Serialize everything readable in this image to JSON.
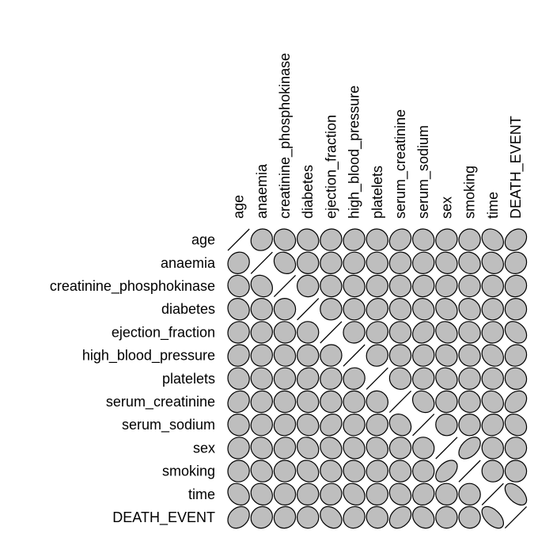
{
  "chart_data": {
    "type": "heatmap",
    "method": "ellipse",
    "variables": [
      "age",
      "anaemia",
      "creatinine_phosphokinase",
      "diabetes",
      "ejection_fraction",
      "high_blood_pressure",
      "platelets",
      "serum_creatinine",
      "serum_sodium",
      "sex",
      "smoking",
      "time",
      "DEATH_EVENT"
    ],
    "correlations": [
      [
        1.0,
        0.09,
        -0.08,
        -0.1,
        0.06,
        0.09,
        -0.05,
        0.16,
        -0.05,
        0.07,
        0.02,
        -0.22,
        0.25
      ],
      [
        0.09,
        1.0,
        -0.19,
        -0.01,
        0.03,
        0.04,
        -0.04,
        0.05,
        0.04,
        -0.09,
        -0.11,
        -0.14,
        0.07
      ],
      [
        -0.08,
        -0.19,
        1.0,
        -0.01,
        -0.04,
        -0.07,
        0.02,
        -0.02,
        0.06,
        0.08,
        0.0,
        -0.01,
        0.06
      ],
      [
        -0.1,
        -0.01,
        -0.01,
        1.0,
        -0.0,
        -0.01,
        0.09,
        -0.05,
        -0.09,
        -0.16,
        -0.15,
        0.03,
        -0.0
      ],
      [
        0.06,
        0.03,
        -0.04,
        -0.0,
        1.0,
        0.02,
        0.07,
        -0.01,
        0.18,
        -0.15,
        -0.07,
        0.04,
        -0.27
      ],
      [
        0.09,
        0.04,
        -0.07,
        -0.01,
        0.02,
        1.0,
        0.05,
        -0.0,
        0.04,
        -0.1,
        -0.06,
        -0.2,
        0.08
      ],
      [
        -0.05,
        -0.04,
        0.02,
        0.09,
        0.07,
        0.05,
        1.0,
        -0.04,
        0.06,
        -0.13,
        0.03,
        0.01,
        -0.05
      ],
      [
        0.16,
        0.05,
        -0.02,
        -0.05,
        -0.01,
        -0.0,
        -0.04,
        1.0,
        -0.19,
        0.01,
        -0.03,
        -0.15,
        0.29
      ],
      [
        -0.05,
        0.04,
        0.06,
        -0.09,
        0.18,
        0.04,
        0.06,
        -0.19,
        1.0,
        -0.03,
        0.0,
        0.09,
        -0.2
      ],
      [
        0.07,
        -0.09,
        0.08,
        -0.16,
        -0.15,
        -0.1,
        -0.13,
        0.01,
        -0.03,
        1.0,
        0.45,
        -0.02,
        -0.0
      ],
      [
        0.02,
        -0.11,
        0.0,
        -0.15,
        -0.07,
        -0.06,
        0.03,
        -0.03,
        0.0,
        0.45,
        1.0,
        -0.02,
        -0.01
      ],
      [
        -0.22,
        -0.14,
        -0.01,
        0.03,
        0.04,
        -0.2,
        0.01,
        -0.15,
        0.09,
        -0.02,
        -0.02,
        1.0,
        -0.53
      ],
      [
        0.25,
        0.07,
        0.06,
        -0.0,
        -0.27,
        0.08,
        -0.05,
        0.29,
        -0.2,
        -0.0,
        -0.01,
        -0.53,
        1.0
      ]
    ],
    "fill_color": "#bebebe",
    "stroke_color": "#000000",
    "diagonal_color": "#000000",
    "grid": false,
    "legend": "none"
  }
}
